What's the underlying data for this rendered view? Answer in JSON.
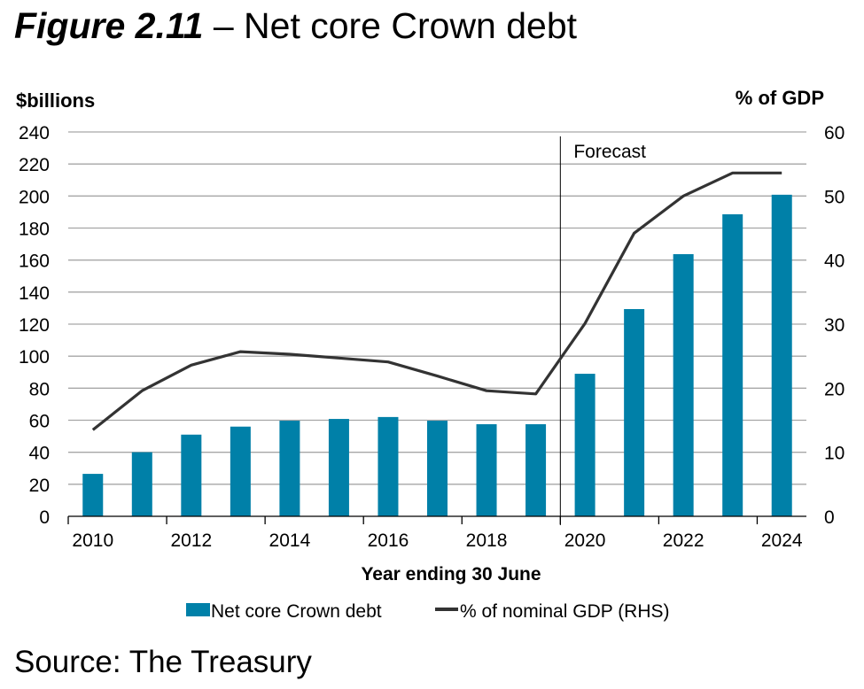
{
  "figure": {
    "number_label": "Figure 2.11",
    "separator": " – ",
    "title": "Net core Crown debt",
    "source": "Source: The Treasury"
  },
  "chart_data": {
    "type": "bar",
    "title": "Net core Crown debt",
    "xlabel": "Year ending 30 June",
    "ylabel": "$billions",
    "y2label": "% of GDP",
    "ylim": [
      0,
      240
    ],
    "y2lim": [
      0,
      60
    ],
    "yticks": [
      0,
      20,
      40,
      60,
      80,
      100,
      120,
      140,
      160,
      180,
      200,
      220,
      240
    ],
    "y2ticks": [
      0,
      10,
      20,
      30,
      40,
      50,
      60
    ],
    "grid": true,
    "categories": [
      "2010",
      "2011",
      "2012",
      "2013",
      "2014",
      "2015",
      "2016",
      "2017",
      "2018",
      "2019",
      "2020",
      "2021",
      "2022",
      "2023",
      "2024"
    ],
    "xtick_labels": [
      "2010",
      "2012",
      "2014",
      "2016",
      "2018",
      "2020",
      "2022",
      "2024"
    ],
    "series": [
      {
        "name": "Net core Crown debt",
        "type": "bar",
        "axis": "left",
        "color": "#0080A8",
        "values": [
          26.5,
          40,
          51,
          56,
          59.7,
          60.8,
          62,
          59.7,
          57.5,
          57.5,
          89,
          129.4,
          163.7,
          188.6,
          200.8
        ]
      },
      {
        "name": "% of nominal GDP (RHS)",
        "type": "line",
        "axis": "right",
        "color": "#333333",
        "values": [
          13.5,
          19.6,
          23.6,
          25.7,
          25.3,
          24.7,
          24.1,
          21.9,
          19.6,
          19.1,
          30.1,
          44.2,
          50.0,
          53.6,
          53.6
        ]
      }
    ],
    "annotations": [
      {
        "text": "Forecast",
        "type": "vertical-line",
        "between": [
          "2019",
          "2020"
        ]
      }
    ],
    "legend": {
      "position": "bottom-center"
    }
  }
}
